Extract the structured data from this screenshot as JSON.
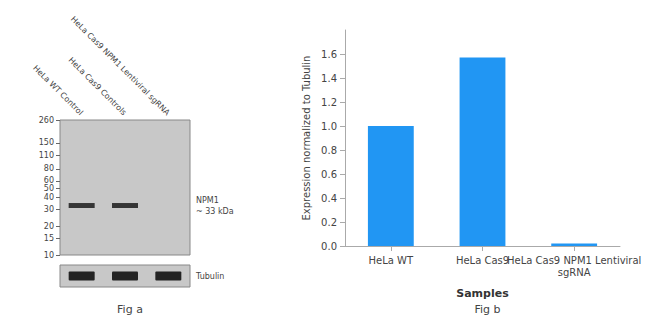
{
  "chart_data": [
    {
      "type": "blot",
      "title": "Fig a",
      "categories": [
        "HeLa WT Control",
        "HeLa Cas9 Controls",
        "HeLa Cas9 NPM1 Lentiviral sgRNA"
      ],
      "series": [
        {
          "name": "NPM1\n~ 33 kDa",
          "type": "scatter",
          "marker": "rect",
          "color": "#252525",
          "values": [
            33,
            33,
            null
          ]
        }
      ],
      "annotations": [
        "Tubulin"
      ],
      "ylim": [
        10,
        260
      ],
      "yticks": [
        260,
        150,
        110,
        80,
        60,
        50,
        40,
        30,
        20,
        15,
        10
      ],
      "log": "y",
      "color": "#c8c8c8",
      "grid": false
    },
    {
      "type": "bar",
      "title": "Fig b",
      "categories": [
        "HeLa WT",
        "HeLa Cas9",
        "HeLa Cas9 NPM1 Lentiviral\nsgRNA"
      ],
      "values": [
        1.0,
        1.57,
        0.02
      ],
      "color": "#2196F3",
      "xlabel": "Samples",
      "ylabel": "Expression normalized to Tubulin",
      "ylim": [
        0,
        1.8
      ],
      "yticks": [
        {
          "value": 0,
          "label": "0.0"
        },
        0.2,
        0.4,
        0.6,
        0.8,
        {
          "value": 1.0,
          "label": "1.0"
        },
        1.2,
        1.4,
        1.6
      ],
      "grid": false
    }
  ]
}
